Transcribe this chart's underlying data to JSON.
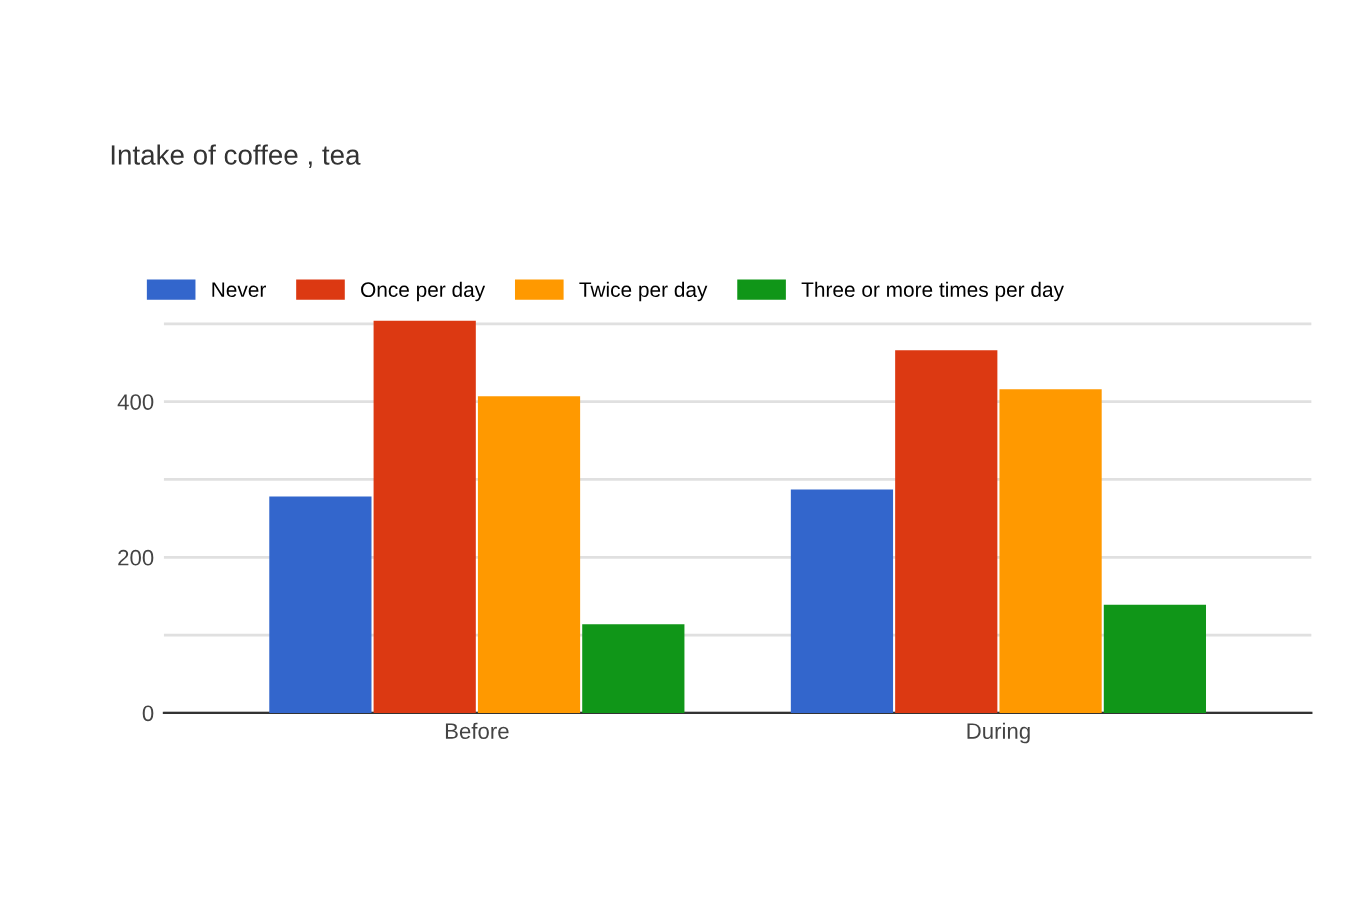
{
  "chart_data": {
    "type": "bar",
    "title": "Intake of coffee , tea",
    "categories": [
      "Before",
      "During"
    ],
    "series": [
      {
        "name": "Never",
        "color": "#3366cc",
        "values": [
          278,
          287
        ]
      },
      {
        "name": "Once per day",
        "color": "#dc3912",
        "values": [
          504,
          466
        ]
      },
      {
        "name": "Twice per day",
        "color": "#ff9900",
        "values": [
          407,
          416
        ]
      },
      {
        "name": "Three or more times per day",
        "color": "#109618",
        "values": [
          114,
          139
        ]
      }
    ],
    "ylim": [
      0,
      505
    ],
    "yticks": [
      0,
      {
        "value": 100,
        "label": null
      },
      200,
      {
        "value": 300,
        "label": null
      },
      400,
      {
        "value": 500,
        "label": null
      }
    ],
    "grid": "y",
    "legend": "top left"
  }
}
